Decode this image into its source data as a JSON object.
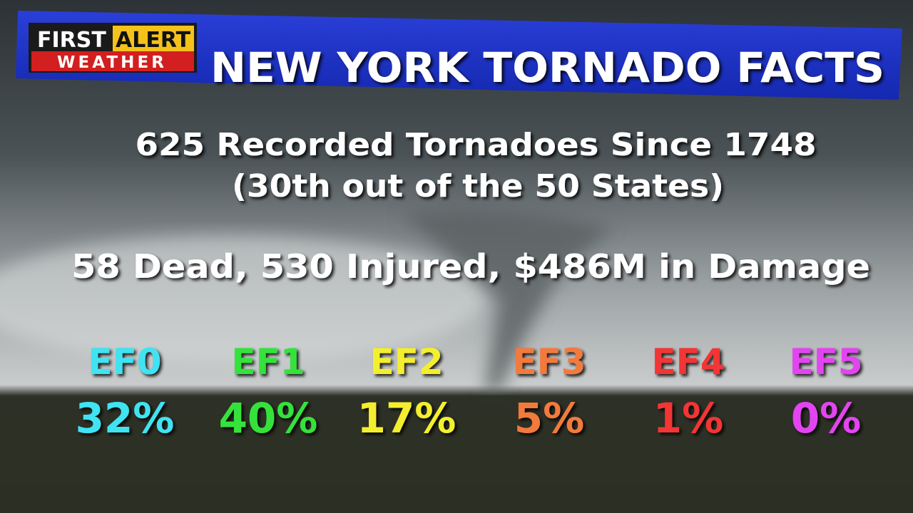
{
  "logo": {
    "first": "FIRST",
    "alert": "ALERT",
    "weather": "WEATHER"
  },
  "header": {
    "title": "NEW YORK TORNADO FACTS"
  },
  "facts": [
    "625 Recorded Tornadoes Since 1748",
    "(30th out of the 50 States)",
    "58 Dead, 530 Injured, $486M in Damage"
  ],
  "ratings": [
    {
      "label": "EF0",
      "share": "32%",
      "color": "#3fe3f2"
    },
    {
      "label": "EF1",
      "share": "40%",
      "color": "#35e23a"
    },
    {
      "label": "EF2",
      "share": "17%",
      "color": "#f4ef2e"
    },
    {
      "label": "EF3",
      "share": "5%",
      "color": "#f27a3c"
    },
    {
      "label": "EF4",
      "share": "1%",
      "color": "#f23434"
    },
    {
      "label": "EF5",
      "share": "0%",
      "color": "#e244f0"
    }
  ]
}
